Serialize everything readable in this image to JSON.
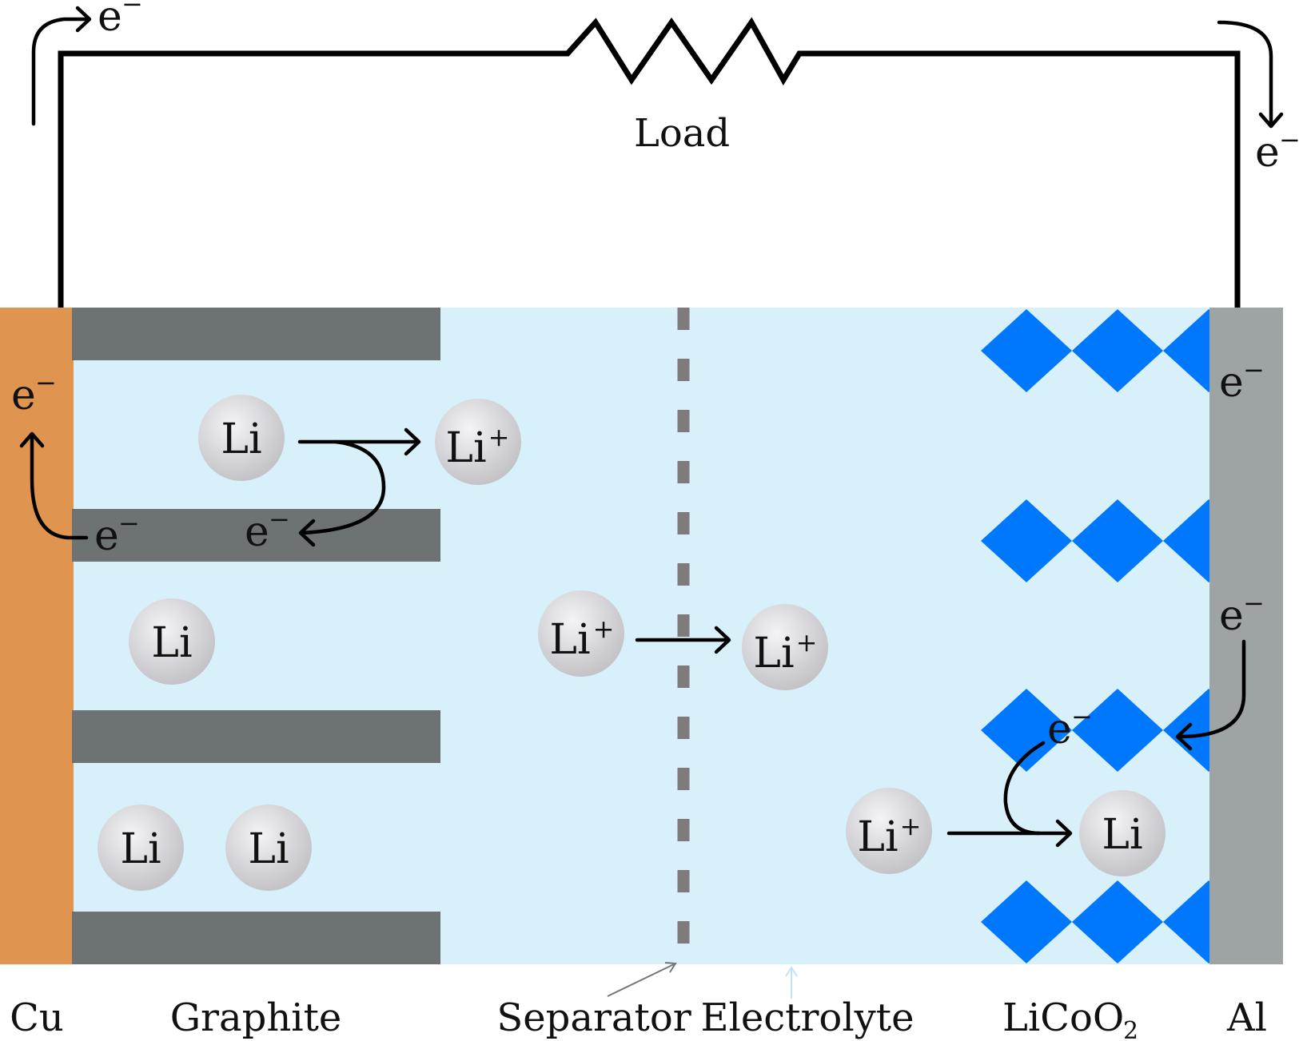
{
  "load": {
    "label": "Load"
  },
  "electron": {
    "base": "e",
    "charge": "−"
  },
  "lithium": {
    "atom": "Li",
    "ion_charge": "+"
  },
  "labels": {
    "cu": "Cu",
    "graphite": "Graphite",
    "separator": "Separator",
    "electrolyte": "Electrolyte",
    "licoo2_main": "LiCoO",
    "licoo2_sub": "2",
    "al": "Al"
  },
  "colors": {
    "copper": "#df944f",
    "graphite": "#6d7372",
    "electrolyte": "#d8f0f9",
    "separator": "#7f7b7c",
    "licoo2": "#0078fd",
    "aluminum": "#9ea3a4",
    "particle": "#d2d2d6"
  }
}
